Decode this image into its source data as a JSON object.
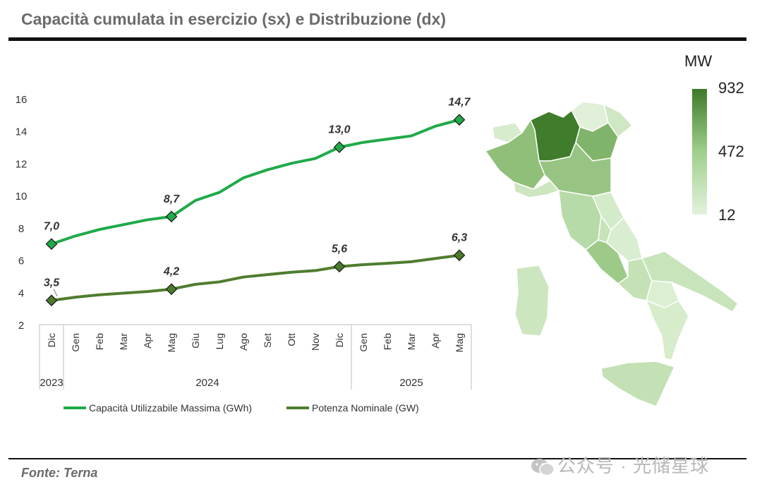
{
  "header": {
    "title": "Capacità cumulata in esercizio (sx) e Distribuzione (dx)"
  },
  "footer": {
    "source": "Fonte: Terna",
    "watermark": "公众号 · 光储星球"
  },
  "colors": {
    "capacity": "#1faa4a",
    "capacity_marker": "#22a94a",
    "power": "#4f7d2e",
    "power_marker": "#4a7a2c",
    "scale_high": "#3d7a2a",
    "scale_mid": "#9fcf8c",
    "scale_low": "#e3f2dc"
  },
  "chart_data": {
    "type": "line",
    "categories": [
      "Dic",
      "Gen",
      "Feb",
      "Mar",
      "Apr",
      "Mag",
      "Giu",
      "Lug",
      "Ago",
      "Set",
      "Ott",
      "Nov",
      "Dic",
      "Gen",
      "Feb",
      "Mar",
      "Apr",
      "Mag"
    ],
    "year_groups": [
      {
        "label": "2023",
        "start": 0,
        "end": 0
      },
      {
        "label": "2024",
        "start": 1,
        "end": 12
      },
      {
        "label": "2025",
        "start": 13,
        "end": 17
      }
    ],
    "series": [
      {
        "name": "Capacità Utilizzabile Massima (GWh)",
        "values": [
          7.0,
          7.5,
          7.9,
          8.2,
          8.5,
          8.7,
          9.7,
          10.2,
          11.1,
          11.6,
          12.0,
          12.3,
          13.0,
          13.3,
          13.5,
          13.7,
          14.3,
          14.7
        ],
        "labels": {
          "0": "7,0",
          "5": "8,7",
          "12": "13,0",
          "17": "14,7"
        }
      },
      {
        "name": "Potenza Nominale (GW)",
        "values": [
          3.5,
          3.7,
          3.85,
          3.95,
          4.05,
          4.2,
          4.5,
          4.65,
          4.95,
          5.1,
          5.25,
          5.35,
          5.6,
          5.72,
          5.8,
          5.9,
          6.1,
          6.3
        ],
        "labels": {
          "0": "3,5",
          "5": "4,2",
          "12": "5,6",
          "17": "6,3"
        }
      }
    ],
    "marker_indices": [
      0,
      5,
      12,
      17
    ],
    "yticks": [
      2,
      4,
      6,
      8,
      10,
      12,
      14,
      16
    ],
    "ylim": [
      2,
      16
    ],
    "grid": false,
    "legend_position": "bottom"
  },
  "map_scale": {
    "unit": "MW",
    "max": "932",
    "mid": "472",
    "min": "12"
  }
}
